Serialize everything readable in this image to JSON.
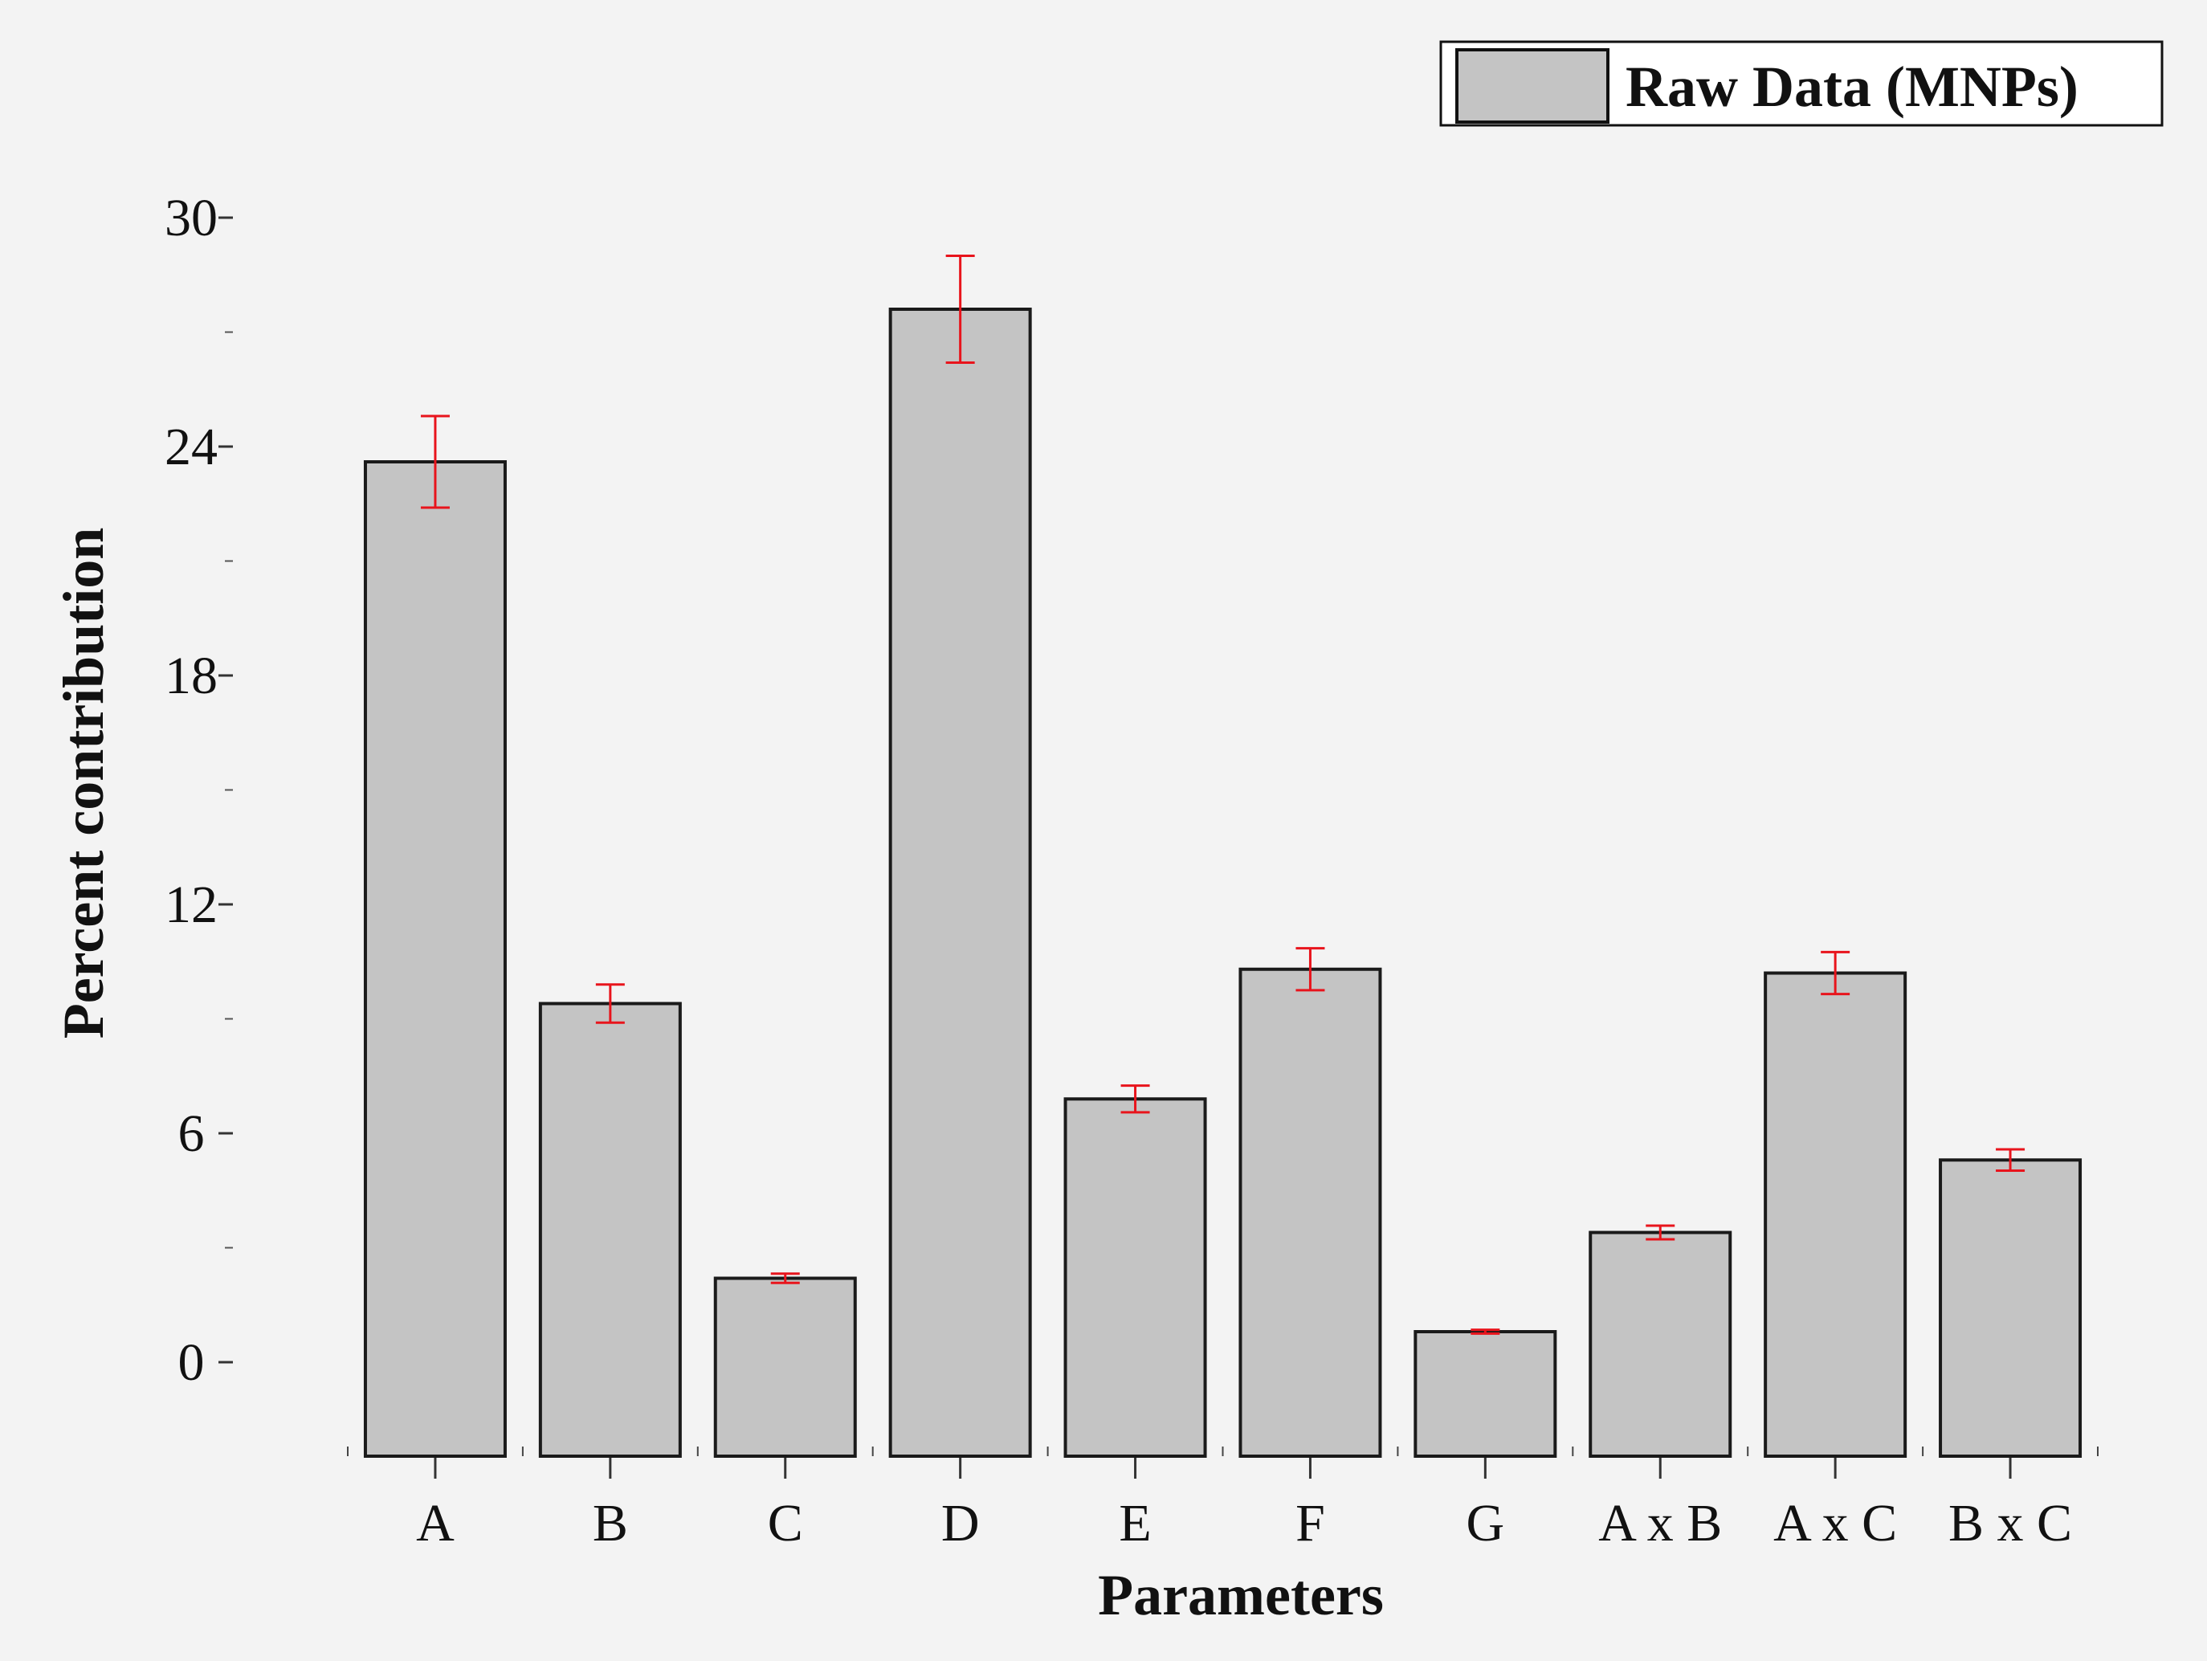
{
  "chart_data": {
    "type": "bar",
    "categories": [
      "A",
      "B",
      "C",
      "D",
      "E",
      "F",
      "G",
      "A x B",
      "A x C",
      "B x C"
    ],
    "series": [
      {
        "name": "Raw Data (MNPs)",
        "values": [
          23.6,
          9.4,
          2.2,
          27.6,
          6.9,
          10.3,
          0.8,
          3.4,
          10.2,
          5.3
        ],
        "errors": [
          1.2,
          0.5,
          0.12,
          1.4,
          0.35,
          0.55,
          0.05,
          0.18,
          0.55,
          0.28
        ]
      }
    ],
    "xlabel": "Parameters",
    "ylabel": "Percent contribution",
    "ylim": [
      -2.5,
      31.5
    ],
    "yticks": [
      0,
      6,
      12,
      18,
      24,
      30
    ],
    "legend_position": "top-right",
    "colors": {
      "bar_fill": "#c4c4c4",
      "bar_stroke": "#1a1a1a",
      "error_bar": "#e8141c",
      "background": "#f3f3f3"
    }
  }
}
